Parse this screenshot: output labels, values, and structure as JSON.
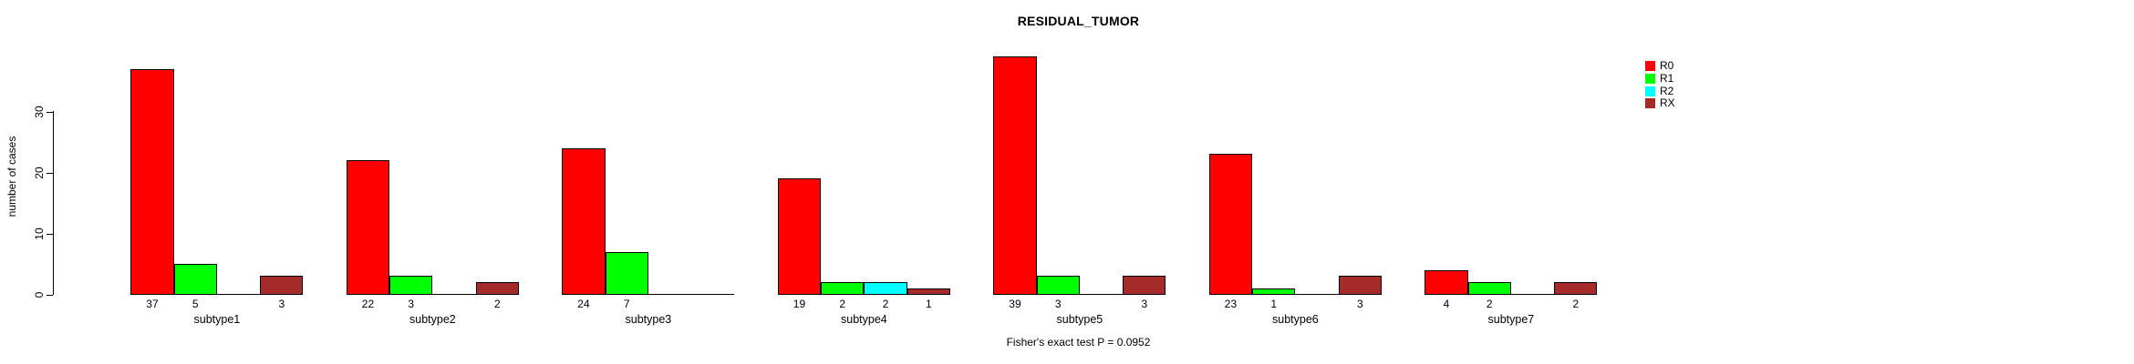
{
  "title": "RESIDUAL_TUMOR",
  "ylabel": "number of cases",
  "annotation": "Fisher's exact test P = 0.0952",
  "legend": {
    "position": "right-top",
    "items": [
      {
        "label": "R0",
        "color": "#FF0000"
      },
      {
        "label": "R1",
        "color": "#00FF00"
      },
      {
        "label": "R2",
        "color": "#00FFFF"
      },
      {
        "label": "RX",
        "color": "#A52A2A"
      }
    ]
  },
  "chart_data": {
    "type": "bar",
    "title": "RESIDUAL_TUMOR",
    "xlabel": "",
    "ylabel": "number of cases",
    "categories": [
      "subtype1",
      "subtype2",
      "subtype3",
      "subtype4",
      "subtype5",
      "subtype6",
      "subtype7"
    ],
    "series": [
      {
        "name": "R0",
        "color": "#FF0000",
        "values": [
          37,
          22,
          24,
          19,
          39,
          23,
          4
        ]
      },
      {
        "name": "R1",
        "color": "#00FF00",
        "values": [
          5,
          3,
          7,
          2,
          3,
          1,
          2
        ]
      },
      {
        "name": "R2",
        "color": "#00FFFF",
        "values": [
          0,
          0,
          0,
          2,
          0,
          0,
          0
        ]
      },
      {
        "name": "RX",
        "color": "#A52A2A",
        "values": [
          3,
          2,
          0,
          1,
          3,
          3,
          2
        ]
      }
    ],
    "yticks": [
      0,
      10,
      20,
      30
    ],
    "ylim": [
      0,
      39
    ],
    "grid": false,
    "legend_position": "right-top",
    "bar_count_labels": "shown under each non-zero bar",
    "annotation": "Fisher's exact test P = 0.0952"
  }
}
